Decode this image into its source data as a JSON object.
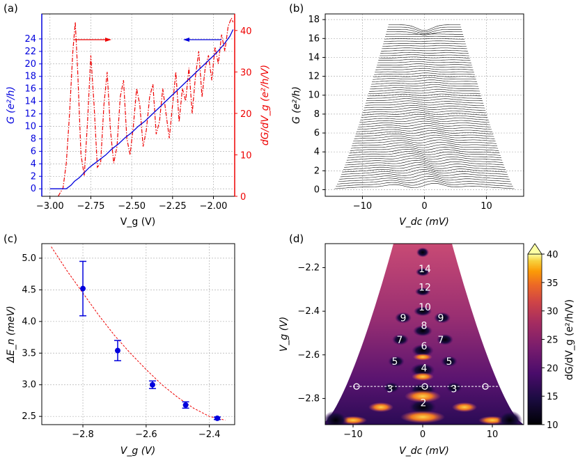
{
  "panels": {
    "a": {
      "label": "(a)",
      "left_ylabel": "G (e²/h)",
      "right_ylabel": "dG/dV_g (e²/h/V)",
      "xlabel": "V_g (V)"
    },
    "b": {
      "label": "(b)",
      "ylabel": "G (e²/h)",
      "xlabel": "V_dc (mV)"
    },
    "c": {
      "label": "(c)",
      "ylabel": "ΔE_n (meV)",
      "xlabel": "V_g (V)"
    },
    "d": {
      "label": "(d)",
      "ylabel": "V_g (V)",
      "xlabel": "V_dc (mV)",
      "colorbar_label": "dG/dV_g (e²/h/V)"
    }
  },
  "chart_data": [
    {
      "id": "a",
      "type": "line",
      "xlabel": "V_g (V)",
      "xlim": [
        -3.05,
        -1.87
      ],
      "xticks": [
        -3.0,
        -2.75,
        -2.5,
        -2.25,
        -2.0
      ],
      "xtick_labels": [
        "−3.00",
        "−2.75",
        "−2.50",
        "−2.25",
        "−2.00"
      ],
      "left_axis": {
        "label": "G (e²/h)",
        "color": "#0000dd",
        "ylim": [
          -1.2,
          28
        ],
        "ticks": [
          0,
          2,
          4,
          6,
          8,
          10,
          12,
          14,
          16,
          18,
          20,
          22,
          24
        ]
      },
      "right_axis": {
        "label": "dG/dV_g (e²/h/V)",
        "color": "#ee0000",
        "ylim": [
          0,
          44
        ],
        "ticks": [
          0,
          10,
          20,
          30,
          40
        ]
      },
      "series": [
        {
          "name": "G",
          "axis": "left",
          "color": "#0000dd",
          "style": "solid",
          "x": [
            -3.0,
            -2.94,
            -2.9,
            -2.87,
            -2.85,
            -2.82,
            -2.79,
            -2.76,
            -2.73,
            -2.7,
            -2.66,
            -2.62,
            -2.58,
            -2.54,
            -2.5,
            -2.46,
            -2.42,
            -2.38,
            -2.34,
            -2.3,
            -2.26,
            -2.22,
            -2.18,
            -2.14,
            -2.1,
            -2.06,
            -2.02,
            -1.98,
            -1.94,
            -1.9,
            -1.88
          ],
          "y": [
            0,
            0,
            0,
            0.6,
            1.2,
            1.8,
            2.6,
            3.4,
            4.0,
            4.6,
            5.4,
            6.4,
            7.2,
            8.2,
            9.0,
            10.0,
            10.8,
            11.8,
            12.8,
            13.8,
            14.8,
            15.8,
            16.8,
            17.8,
            18.8,
            19.8,
            20.8,
            21.8,
            23.0,
            24.4,
            25.5
          ]
        },
        {
          "name": "dG/dV_g",
          "axis": "right",
          "color": "#ee0000",
          "style": "dashdot",
          "x": [
            -2.95,
            -2.92,
            -2.9,
            -2.88,
            -2.86,
            -2.845,
            -2.83,
            -2.81,
            -2.79,
            -2.77,
            -2.75,
            -2.73,
            -2.71,
            -2.69,
            -2.67,
            -2.65,
            -2.63,
            -2.61,
            -2.59,
            -2.57,
            -2.55,
            -2.53,
            -2.51,
            -2.49,
            -2.47,
            -2.45,
            -2.43,
            -2.41,
            -2.39,
            -2.37,
            -2.35,
            -2.33,
            -2.31,
            -2.29,
            -2.27,
            -2.25,
            -2.23,
            -2.21,
            -2.19,
            -2.17,
            -2.15,
            -2.13,
            -2.11,
            -2.09,
            -2.07,
            -2.05,
            -2.03,
            -2.01,
            -1.99,
            -1.97,
            -1.95,
            -1.93,
            -1.91,
            -1.89,
            -1.88
          ],
          "y": [
            0,
            2,
            8,
            20,
            35,
            42,
            30,
            10,
            5,
            18,
            34,
            22,
            7,
            8,
            22,
            30,
            16,
            8,
            12,
            24,
            28,
            14,
            10,
            17,
            26,
            22,
            12,
            16,
            24,
            27,
            15,
            18,
            26,
            20,
            14,
            22,
            30,
            18,
            26,
            23,
            31,
            20,
            29,
            35,
            24,
            31,
            34,
            28,
            36,
            32,
            39,
            35,
            41,
            43,
            42
          ]
        }
      ],
      "annotations": [
        "red arrow pointing right (dG/dV_g uses right axis)",
        "blue arrow pointing left (G uses left axis)"
      ]
    },
    {
      "id": "b",
      "type": "line",
      "description_series": "stack of G(V_dc) traces for many gate voltages",
      "xlabel": "V_dc (mV)",
      "ylabel": "G (e²/h)",
      "xlim": [
        -16,
        16
      ],
      "ylim": [
        -0.7,
        18.6
      ],
      "xticks": [
        -10,
        0,
        10
      ],
      "yticks": [
        0,
        2,
        4,
        6,
        8,
        10,
        12,
        14,
        16,
        18
      ],
      "envelope_top": {
        "x": [
          -5.8,
          -3,
          0,
          3,
          6
        ],
        "y": [
          17.6,
          17.3,
          16.6,
          17.0,
          16.9
        ]
      },
      "vdc_range": [
        -14.5,
        14.5
      ],
      "plateau_levels": [
        2,
        4,
        6,
        8,
        10,
        12,
        14
      ]
    },
    {
      "id": "c",
      "type": "scatter",
      "xlabel": "V_g (V)",
      "ylabel": "ΔE_n (meV)",
      "xlim": [
        -2.93,
        -2.32
      ],
      "ylim": [
        2.37,
        5.23
      ],
      "xticks": [
        -2.8,
        -2.6,
        -2.4
      ],
      "yticks": [
        2.5,
        3.0,
        3.5,
        4.0,
        4.5,
        5.0
      ],
      "points": {
        "x": [
          -2.8,
          -2.69,
          -2.58,
          -2.475,
          -2.375
        ],
        "y": [
          4.52,
          3.54,
          3.0,
          2.68,
          2.47
        ],
        "err": [
          0.43,
          0.16,
          0.06,
          0.05,
          0.02
        ]
      },
      "fit": {
        "color": "#ee0000",
        "style": "dashed",
        "x": [
          -2.9,
          -2.85,
          -2.8,
          -2.75,
          -2.7,
          -2.65,
          -2.6,
          -2.55,
          -2.5,
          -2.45,
          -2.4,
          -2.35
        ],
        "y": [
          5.18,
          4.8,
          4.45,
          4.1,
          3.78,
          3.5,
          3.24,
          3.0,
          2.8,
          2.63,
          2.5,
          2.44
        ]
      }
    },
    {
      "id": "d",
      "type": "heatmap",
      "xlabel": "V_dc (mV)",
      "ylabel": "V_g (V)",
      "xlim": [
        -14,
        14.5
      ],
      "ylim": [
        -2.92,
        -2.09
      ],
      "xticks": [
        -10,
        0,
        10
      ],
      "yticks": [
        -2.2,
        -2.4,
        -2.6,
        -2.8
      ],
      "colorbar": {
        "label": "dG/dV_g (e²/h/V)",
        "range": [
          10,
          40
        ],
        "ticks": [
          10,
          15,
          20,
          25,
          30,
          35,
          40
        ]
      },
      "center_numbers": [
        {
          "text": "14",
          "vdc": 0.3,
          "vg": -2.205
        },
        {
          "text": "12",
          "vdc": 0.3,
          "vg": -2.29
        },
        {
          "text": "10",
          "vdc": 0.3,
          "vg": -2.38
        },
        {
          "text": "8",
          "vdc": 0.2,
          "vg": -2.465
        },
        {
          "text": "6",
          "vdc": 0.2,
          "vg": -2.56
        },
        {
          "text": "4",
          "vdc": 0.2,
          "vg": -2.66
        },
        {
          "text": "2",
          "vdc": 0.1,
          "vg": -2.82
        }
      ],
      "side_numbers": [
        {
          "text": "9",
          "vdc": -2.8,
          "vg": -2.43
        },
        {
          "text": "9",
          "vdc": 2.6,
          "vg": -2.43
        },
        {
          "text": "7",
          "vdc": -3.3,
          "vg": -2.53
        },
        {
          "text": "7",
          "vdc": 2.6,
          "vg": -2.53
        },
        {
          "text": "5",
          "vdc": -4.0,
          "vg": -2.63
        },
        {
          "text": "5",
          "vdc": 3.8,
          "vg": -2.63
        },
        {
          "text": "3",
          "vdc": -4.7,
          "vg": -2.755
        },
        {
          "text": "3",
          "vdc": 4.5,
          "vg": -2.755
        }
      ],
      "dashed_line_vg": -2.745,
      "circles_vdc": [
        -9.5,
        0.3,
        9.0
      ]
    }
  ]
}
